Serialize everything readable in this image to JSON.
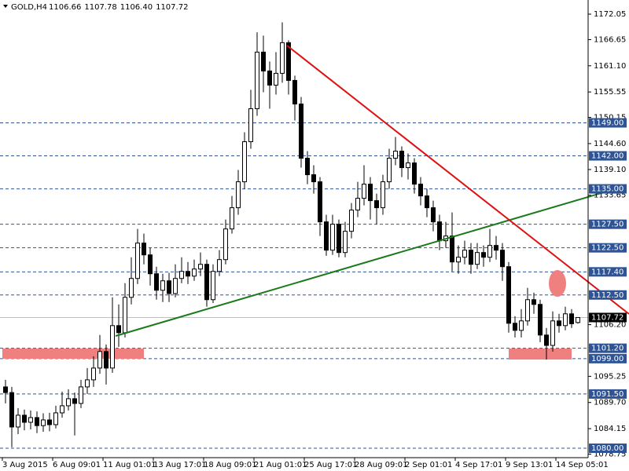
{
  "chart_data": {
    "type": "candlestick",
    "title": "GOLD,H4",
    "header_values": [
      1106.66,
      1107.78,
      {
        "value": 1106.4,
        "label": "1106.40"
      },
      1107.72
    ],
    "categories": [
      "3 Aug 2015",
      null,
      null,
      null,
      null,
      null,
      null,
      null,
      "6 Aug 09:01",
      null,
      null,
      null,
      null,
      null,
      null,
      null,
      "11 Aug 01:01",
      null,
      null,
      null,
      null,
      null,
      null,
      null,
      "13 Aug 17:01",
      null,
      null,
      null,
      null,
      null,
      null,
      null,
      "18 Aug 09:01",
      null,
      null,
      null,
      null,
      null,
      null,
      null,
      "21 Aug 01:01",
      null,
      null,
      null,
      null,
      null,
      null,
      null,
      "25 Aug 17:01",
      null,
      null,
      null,
      null,
      null,
      null,
      null,
      "28 Aug 09:01",
      null,
      null,
      null,
      null,
      null,
      null,
      null,
      "2 Sep 01:01",
      null,
      null,
      null,
      null,
      null,
      null,
      null,
      "4 Sep 17:01",
      null,
      null,
      null,
      null,
      null,
      null,
      null,
      "9 Sep 13:01",
      null,
      null,
      null,
      null,
      null,
      null,
      null,
      "14 Sep 05:01",
      null,
      null,
      null
    ],
    "open": [
      1093.0,
      1091.8,
      1084.5,
      1087.0,
      1085.5,
      1086.5,
      1084.8,
      1086.0,
      1085.0,
      1087.5,
      1089.0,
      1090.5,
      1089.5,
      1093.0,
      1094.5,
      1097.0,
      1100.5,
      1097.0,
      1106.0,
      1104.5,
      1112.0,
      1116.0,
      1123.5,
      1121.0,
      1117.0,
      1113.5,
      1115.5,
      1112.8,
      1116.0,
      1117.5,
      1116.5,
      1118.0,
      1119.0,
      1111.5,
      1117.5,
      1120.0,
      1126.5,
      1131.0,
      1136.5,
      1145.0,
      1152.0,
      1164.0,
      1160.0,
      1157.0,
      1159.5,
      1166.0,
      1158.0,
      1153.0,
      1141.5,
      1138.0,
      1136.5,
      1128.0,
      1122.0,
      1127.5,
      1121.5,
      1126.0,
      1130.5,
      1133.0,
      1136.0,
      1132.5,
      1131.0,
      1136.5,
      1141.5,
      1143.0,
      1139.5,
      1140.5,
      1136.0,
      1133.5,
      1131.0,
      1128.0,
      1124.0,
      1125.0,
      1119.5,
      1120.5,
      1122.0,
      1119.0,
      1121.5,
      1120.5,
      1123.0,
      1122.0,
      1118.5,
      1106.5,
      1105.0,
      1107.0,
      1111.5,
      1110.5,
      1104.0,
      1101.8,
      1107.0,
      1106.0,
      1108.5,
      1106.66
    ],
    "high": [
      1094.5,
      1093.0,
      1088.5,
      1088.2,
      1088.0,
      1087.8,
      1087.4,
      1087.5,
      1089.0,
      1092.0,
      1092.5,
      1091.8,
      1094.5,
      1097.0,
      1099.5,
      1104.0,
      1102.0,
      1112.0,
      1110.5,
      1115.0,
      1120.5,
      1126.5,
      1125.5,
      1122.5,
      1118.5,
      1117.0,
      1117.2,
      1119.0,
      1120.5,
      1119.5,
      1120.0,
      1121.5,
      1120.0,
      1119.0,
      1122.0,
      1128.5,
      1133.5,
      1139.0,
      1147.0,
      1156.0,
      1168.2,
      1167.5,
      1162.0,
      1164.0,
      1170.3,
      1166.5,
      1159.0,
      1154.5,
      1143.0,
      1140.0,
      1137.5,
      1129.5,
      1129.5,
      1128.5,
      1128.0,
      1132.0,
      1136.5,
      1140.0,
      1137.5,
      1134.0,
      1138.0,
      1143.5,
      1146.0,
      1144.0,
      1142.5,
      1141.5,
      1137.5,
      1135.0,
      1132.5,
      1129.5,
      1128.0,
      1130.0,
      1123.0,
      1124.0,
      1123.5,
      1123.5,
      1123.0,
      1126.5,
      1125.0,
      1123.5,
      1119.5,
      1108.0,
      1109.5,
      1114.0,
      1113.0,
      1111.5,
      1105.5,
      1109.0,
      1108.5,
      1110.0,
      1109.5,
      1107.78
    ],
    "low": [
      1089.5,
      1080.2,
      1083.0,
      1083.8,
      1084.0,
      1083.2,
      1083.5,
      1083.6,
      1084.2,
      1086.5,
      1088.0,
      1082.7,
      1088.5,
      1091.5,
      1093.0,
      1095.8,
      1093.5,
      1096.0,
      1101.5,
      1103.5,
      1110.5,
      1114.8,
      1119.0,
      1114.5,
      1111.5,
      1111.0,
      1111.0,
      1112.0,
      1115.0,
      1114.8,
      1115.5,
      1116.5,
      1110.0,
      1110.8,
      1116.5,
      1119.0,
      1125.5,
      1129.5,
      1135.0,
      1143.5,
      1150.5,
      1155.5,
      1152.0,
      1155.0,
      1157.5,
      1155.0,
      1149.5,
      1139.5,
      1136.0,
      1134.0,
      1125.0,
      1120.8,
      1121.0,
      1120.5,
      1120.5,
      1124.5,
      1129.0,
      1131.5,
      1128.5,
      1127.5,
      1129.5,
      1135.0,
      1140.0,
      1137.5,
      1137.0,
      1134.0,
      1131.5,
      1129.0,
      1126.0,
      1122.0,
      1122.5,
      1117.5,
      1117.0,
      1119.0,
      1117.0,
      1118.0,
      1118.5,
      1119.5,
      1120.0,
      1115.5,
      1104.5,
      1103.5,
      1103.5,
      1106.0,
      1108.5,
      1102.5,
      1098.8,
      1100.5,
      1104.5,
      1105.0,
      1105.5,
      1106.4
    ],
    "close": [
      1091.8,
      1084.5,
      1087.0,
      1085.5,
      1086.5,
      1084.8,
      1086.0,
      1085.0,
      1087.5,
      1089.0,
      1090.5,
      1089.5,
      1093.0,
      1094.5,
      1097.0,
      1100.5,
      1097.0,
      1106.0,
      1104.5,
      1112.0,
      1116.0,
      1123.5,
      1121.0,
      1117.0,
      1113.5,
      1115.5,
      1112.8,
      1116.0,
      1117.5,
      1116.5,
      1118.0,
      1119.0,
      1111.5,
      1117.5,
      1120.0,
      1126.5,
      1131.0,
      1136.5,
      1145.0,
      1152.0,
      1164.0,
      1160.0,
      1157.0,
      1159.5,
      1166.0,
      1158.0,
      1153.0,
      1141.5,
      1138.0,
      1136.5,
      1128.0,
      1122.0,
      1127.5,
      1121.5,
      1126.0,
      1130.5,
      1133.0,
      1136.0,
      1132.5,
      1131.0,
      1136.5,
      1141.5,
      1143.0,
      1139.5,
      1140.5,
      1136.0,
      1133.5,
      1131.0,
      1128.0,
      1124.0,
      1125.0,
      1119.5,
      1120.5,
      1122.0,
      1119.0,
      1121.5,
      1120.5,
      1123.0,
      1122.0,
      1118.5,
      1106.5,
      1105.0,
      1107.0,
      1111.5,
      1110.5,
      1104.0,
      1101.8,
      1107.0,
      1106.0,
      1108.5,
      1106.4,
      1107.72
    ],
    "up_color": "#ffffff",
    "down_color": "#000000",
    "ylim": [
      1078.0,
      1175.05
    ],
    "yticks": [
      1172.05,
      1166.65,
      {
        "value": 1161.1,
        "label": "1161.10"
      },
      1155.55,
      1150.15,
      {
        "value": 1144.6,
        "label": "1144.60"
      },
      {
        "value": 1139.1,
        "label": "1139.10"
      },
      1133.65,
      {
        "value": 1106.2,
        "label": "1106.20"
      },
      1095.25,
      {
        "value": 1089.7,
        "label": "1089.70"
      },
      1084.15,
      1078.75
    ],
    "level_color": "#2f5496",
    "levels": [
      {
        "value": 1149,
        "label": "1149.00"
      },
      {
        "value": 1142,
        "label": "1142.00"
      },
      {
        "value": 1135,
        "label": "1135.00"
      },
      {
        "value": 1127.5,
        "label": "1127.50"
      },
      {
        "value": 1122.5,
        "label": "1122.50"
      },
      {
        "value": 1117.4,
        "label": "1117.40"
      },
      {
        "value": 1112.5,
        "label": "1112.50"
      },
      {
        "value": 1101.2,
        "label": "1101.20"
      },
      {
        "value": 1099,
        "label": "1099.00"
      },
      {
        "value": 1091.5,
        "label": "1091.50"
      },
      {
        "value": 1080,
        "label": "1080.00"
      }
    ],
    "current_price": 1107.72
  }
}
